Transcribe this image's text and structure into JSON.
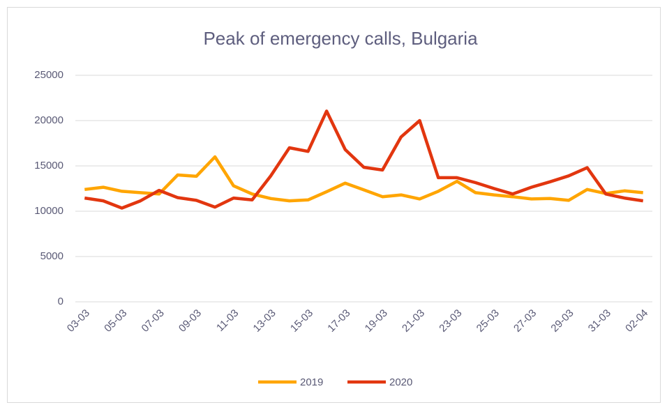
{
  "chart_data": {
    "type": "line",
    "title": "Peak of emergency calls, Bulgaria",
    "categories": [
      "03-03",
      null,
      "05-03",
      null,
      "07-03",
      null,
      "09-03",
      null,
      "11-03",
      null,
      "13-03",
      null,
      "15-03",
      null,
      "17-03",
      null,
      "19-03",
      null,
      "21-03",
      null,
      "23-03",
      null,
      "25-03",
      null,
      "27-03",
      null,
      "29-03",
      null,
      "31-03",
      null,
      "02-04"
    ],
    "series": [
      {
        "name": "2019",
        "color": "#ffa500",
        "values": [
          12400,
          12650,
          12200,
          12050,
          11900,
          14000,
          13850,
          16000,
          12800,
          11900,
          11400,
          11150,
          11250,
          12150,
          13100,
          12350,
          11600,
          11800,
          11350,
          12200,
          13300,
          12050,
          11800,
          11600,
          11350,
          11400,
          11200,
          12400,
          11950,
          12250,
          12050
        ]
      },
      {
        "name": "2020",
        "color": "#e2360f",
        "values": [
          11450,
          11150,
          10350,
          11150,
          12300,
          11500,
          11200,
          10450,
          11450,
          11250,
          13900,
          17000,
          16600,
          21050,
          16800,
          14850,
          14550,
          18200,
          20000,
          13700,
          13700,
          13150,
          12500,
          11900,
          12650,
          13250,
          13900,
          14800,
          11900,
          11450,
          11150
        ]
      }
    ],
    "ylim": [
      0,
      25000
    ],
    "yticks": [
      0,
      5000,
      10000,
      15000,
      20000,
      25000
    ],
    "grid": true,
    "legend": "bottom"
  }
}
